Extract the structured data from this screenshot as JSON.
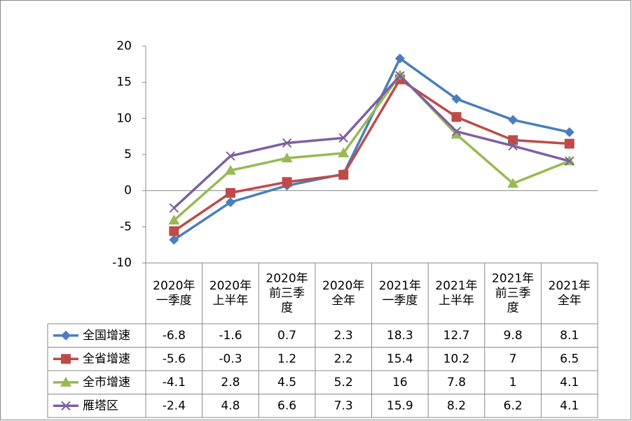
{
  "chart_data": {
    "type": "line",
    "categories": [
      "2020年\n一季度",
      "2020年\n上半年",
      "2020年\n前三季\n度",
      "2020年\n全年",
      "2021年\n一季度",
      "2021年\n上半年",
      "2021年\n前三季\n度",
      "2021年\n全年"
    ],
    "series": [
      {
        "name": "全国增速",
        "color": "#4a7ebb",
        "marker": "diamond",
        "values": [
          -6.8,
          -1.6,
          0.7,
          2.3,
          18.3,
          12.7,
          9.8,
          8.1
        ]
      },
      {
        "name": "全省增速",
        "color": "#be4b48",
        "marker": "square",
        "values": [
          -5.6,
          -0.3,
          1.2,
          2.2,
          15.4,
          10.2,
          7,
          6.5
        ]
      },
      {
        "name": "全市增速",
        "color": "#98b954",
        "marker": "triangle",
        "values": [
          -4.1,
          2.8,
          4.5,
          5.2,
          16,
          7.8,
          1,
          4.1
        ]
      },
      {
        "name": "雁塔区",
        "color": "#7d60a0",
        "marker": "x",
        "values": [
          -2.4,
          4.8,
          6.6,
          7.3,
          15.9,
          8.2,
          6.2,
          4.1
        ]
      }
    ],
    "ylim": [
      -10,
      20
    ],
    "yticks": [
      -10,
      -5,
      0,
      5,
      10,
      15,
      20
    ],
    "grid": false,
    "data_table": true
  }
}
